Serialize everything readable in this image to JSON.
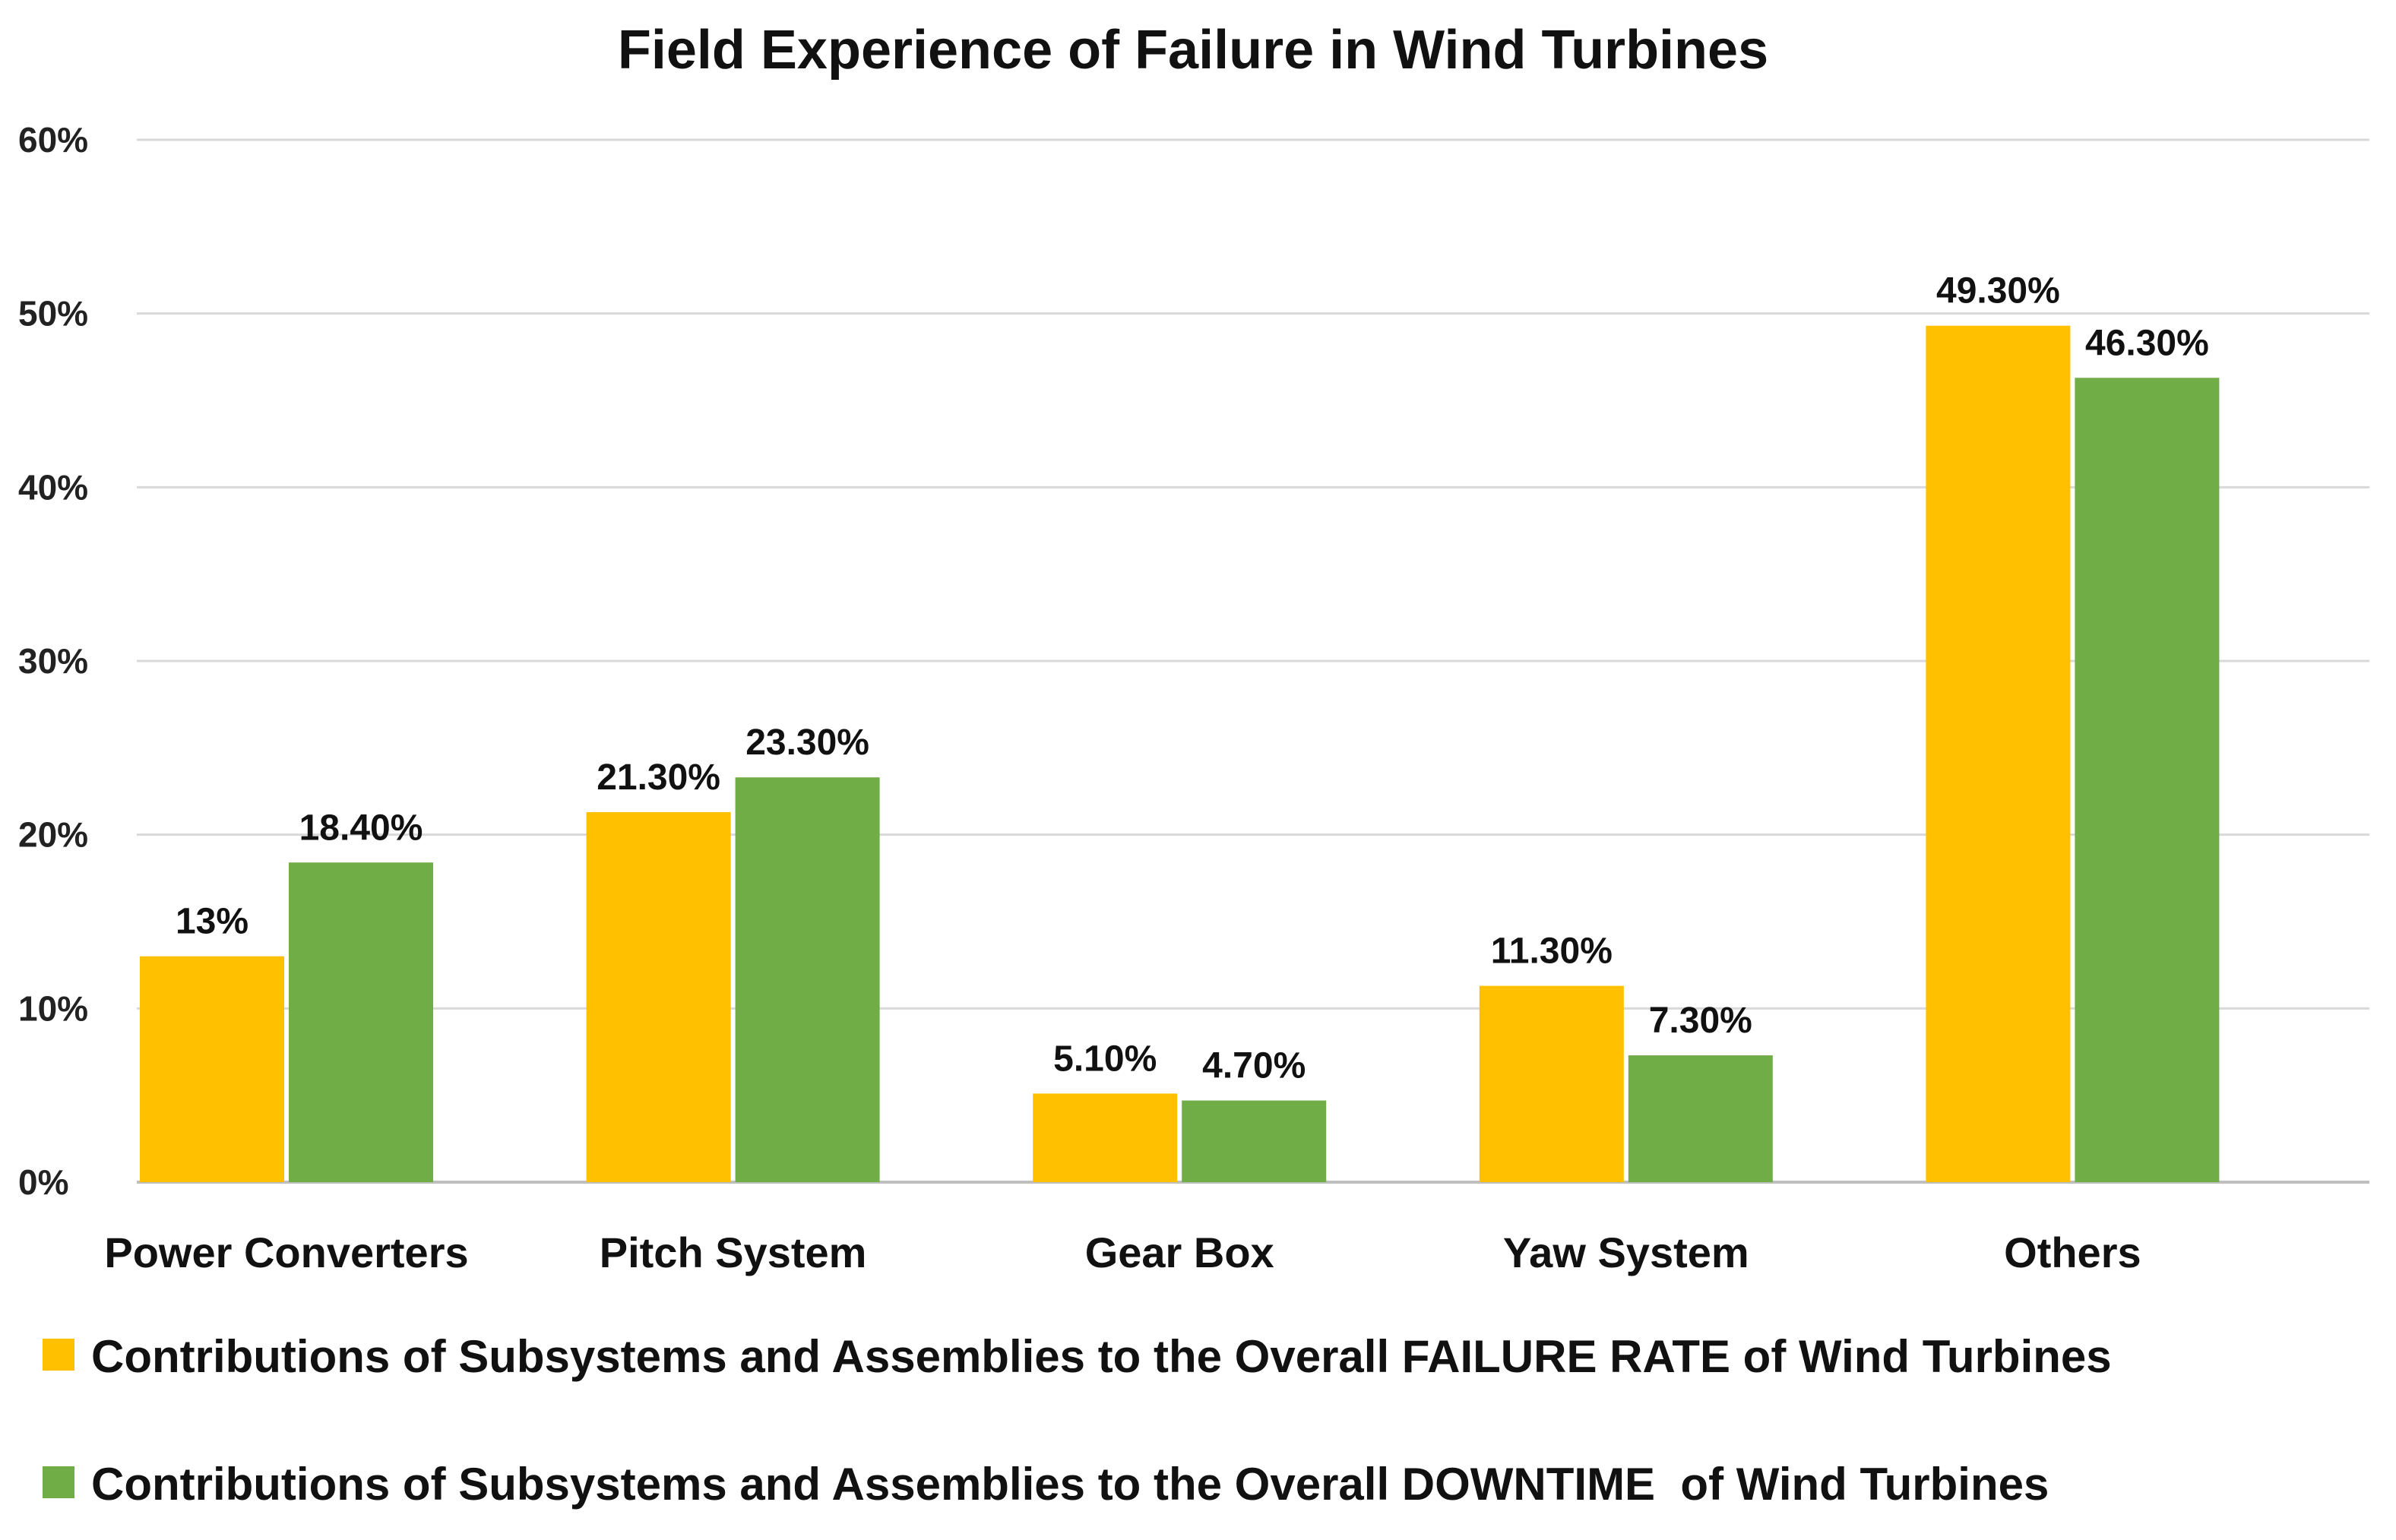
{
  "chart_data": {
    "type": "bar",
    "title": "Field Experience of Failure in Wind Turbines",
    "categories": [
      "Power Converters",
      "Pitch System",
      "Gear Box",
      "Yaw System",
      "Others"
    ],
    "series": [
      {
        "name": "Contributions of Subsystems and Assemblies to the Overall FAILURE RATE of Wind Turbines",
        "color": "#FFC000",
        "values": [
          13,
          21.3,
          5.1,
          11.3,
          49.3
        ],
        "labels": [
          "13%",
          "21.30%",
          "5.10%",
          "11.30%",
          "49.30%"
        ]
      },
      {
        "name": "Contributions of Subsystems and Assemblies to the Overall DOWNTIME  of Wind Turbines",
        "color": "#70AD47",
        "values": [
          18.4,
          23.3,
          4.7,
          7.3,
          46.3
        ],
        "labels": [
          "18.40%",
          "23.30%",
          "4.70%",
          "7.30%",
          "46.30%"
        ]
      }
    ],
    "ylim": [
      0,
      60
    ],
    "yticks": [
      0,
      10,
      20,
      30,
      40,
      50,
      60
    ],
    "ytick_labels": [
      "0%",
      "10%",
      "20%",
      "30%",
      "40%",
      "50%",
      "60%"
    ],
    "xlabel": "",
    "ylabel": "",
    "grid": true,
    "legend_position": "bottom"
  }
}
